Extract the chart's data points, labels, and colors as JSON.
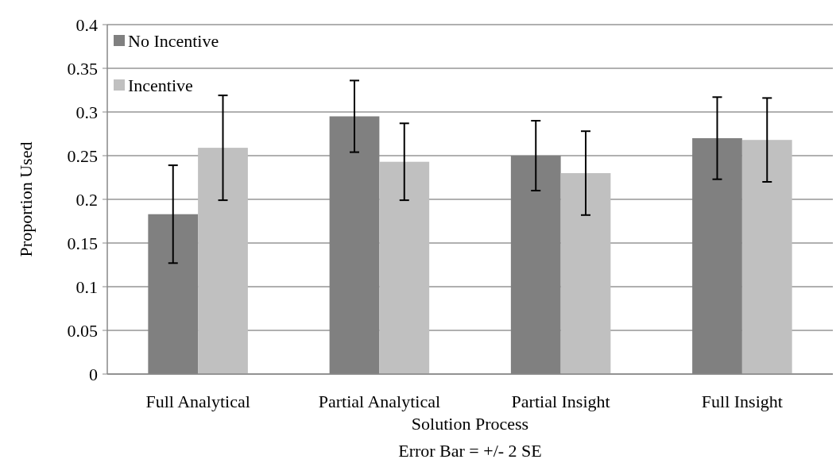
{
  "chart_data": {
    "type": "bar",
    "xlabel": "Solution Process",
    "ylabel": "Proportion Used",
    "annotations": [
      "Error Bar = +/- 2 SE"
    ],
    "categories": [
      "Full Analytical",
      "Partial Analytical",
      "Partial Insight",
      "Full Insight"
    ],
    "series": [
      {
        "name": "No Incentive",
        "color": "#808080",
        "values": [
          0.183,
          0.295,
          0.25,
          0.27
        ],
        "errors": [
          0.056,
          0.041,
          0.04,
          0.047
        ]
      },
      {
        "name": "Incentive",
        "color": "#c0c0c0",
        "values": [
          0.259,
          0.243,
          0.23,
          0.268
        ],
        "errors": [
          0.06,
          0.044,
          0.048,
          0.048
        ]
      }
    ],
    "ylim": [
      0,
      0.4
    ],
    "yticks": [
      0,
      0.05,
      0.1,
      0.15,
      0.2,
      0.25,
      0.3,
      0.35,
      0.4
    ],
    "grid": "y",
    "legend": "top left"
  }
}
